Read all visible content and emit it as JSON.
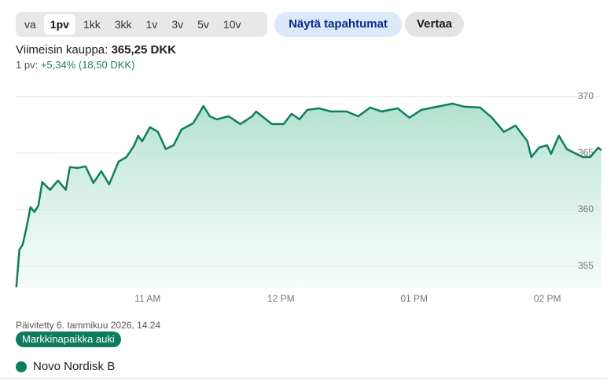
{
  "ui": {
    "range_buttons": [
      "va",
      "1pv",
      "1kk",
      "3kk",
      "1v",
      "3v",
      "5v",
      "10v"
    ],
    "events_button": "Näytä tapahtumat",
    "compare_button": "Vertaa",
    "last_trade_label": "Viimeisin kauppa:",
    "last_trade_value": "365,25 DKK",
    "change_label": "1 pv:",
    "change_value": "+5,34% (18,50 DKK)",
    "updated": "Päivitetty 6. tammikuu 2026, 14.24",
    "market_status": "Markkinapaikka auki"
  },
  "chart_data": {
    "type": "line",
    "x": [
      10.015,
      10.038,
      10.062,
      10.091,
      10.121,
      10.15,
      10.18,
      10.209,
      10.268,
      10.327,
      10.386,
      10.416,
      10.475,
      10.534,
      10.593,
      10.652,
      10.711,
      10.782,
      10.841,
      10.9,
      10.929,
      10.959,
      11.018,
      11.077,
      11.136,
      11.195,
      11.254,
      11.342,
      11.419,
      11.466,
      11.519,
      11.608,
      11.696,
      11.785,
      11.814,
      11.932,
      12.021,
      12.08,
      12.139,
      12.198,
      12.286,
      12.375,
      12.493,
      12.581,
      12.67,
      12.758,
      12.876,
      12.965,
      13.053,
      13.171,
      13.289,
      13.378,
      13.496,
      13.584,
      13.673,
      13.761,
      13.85,
      13.879,
      13.938,
      13.997,
      14.027,
      14.086,
      14.145,
      14.263,
      14.322,
      14.381,
      14.404
    ],
    "series": [
      {
        "name": "Novo Nordisk B",
        "color": "#0e7d62",
        "values": [
          353.13,
          356.46,
          356.88,
          358.4,
          360.21,
          359.79,
          360.35,
          362.43,
          361.74,
          362.57,
          361.74,
          363.75,
          363.68,
          363.82,
          362.36,
          363.4,
          362.22,
          364.24,
          364.65,
          365.69,
          366.53,
          366.04,
          367.29,
          366.88,
          365.35,
          365.69,
          367.08,
          367.64,
          369.17,
          368.26,
          367.99,
          368.26,
          367.57,
          368.26,
          368.68,
          367.57,
          367.57,
          368.47,
          367.99,
          368.82,
          368.96,
          368.68,
          368.68,
          368.26,
          369.03,
          368.68,
          368.96,
          368.13,
          368.82,
          369.1,
          369.38,
          369.1,
          369.03,
          368.13,
          366.88,
          367.43,
          366.04,
          364.65,
          365.49,
          365.69,
          364.93,
          366.53,
          365.35,
          364.65,
          364.65,
          365.49,
          365.25
        ]
      }
    ],
    "xlim": [
      10.01,
      14.4
    ],
    "xticks": [
      {
        "value": 11,
        "label": "11 AM"
      },
      {
        "value": 12,
        "label": "12 PM"
      },
      {
        "value": 13,
        "label": "01 PM"
      },
      {
        "value": 14,
        "label": "02 PM"
      }
    ],
    "ylim": [
      353.1,
      370.9
    ],
    "yticks": [
      355,
      360,
      365,
      370
    ],
    "grid": true
  }
}
